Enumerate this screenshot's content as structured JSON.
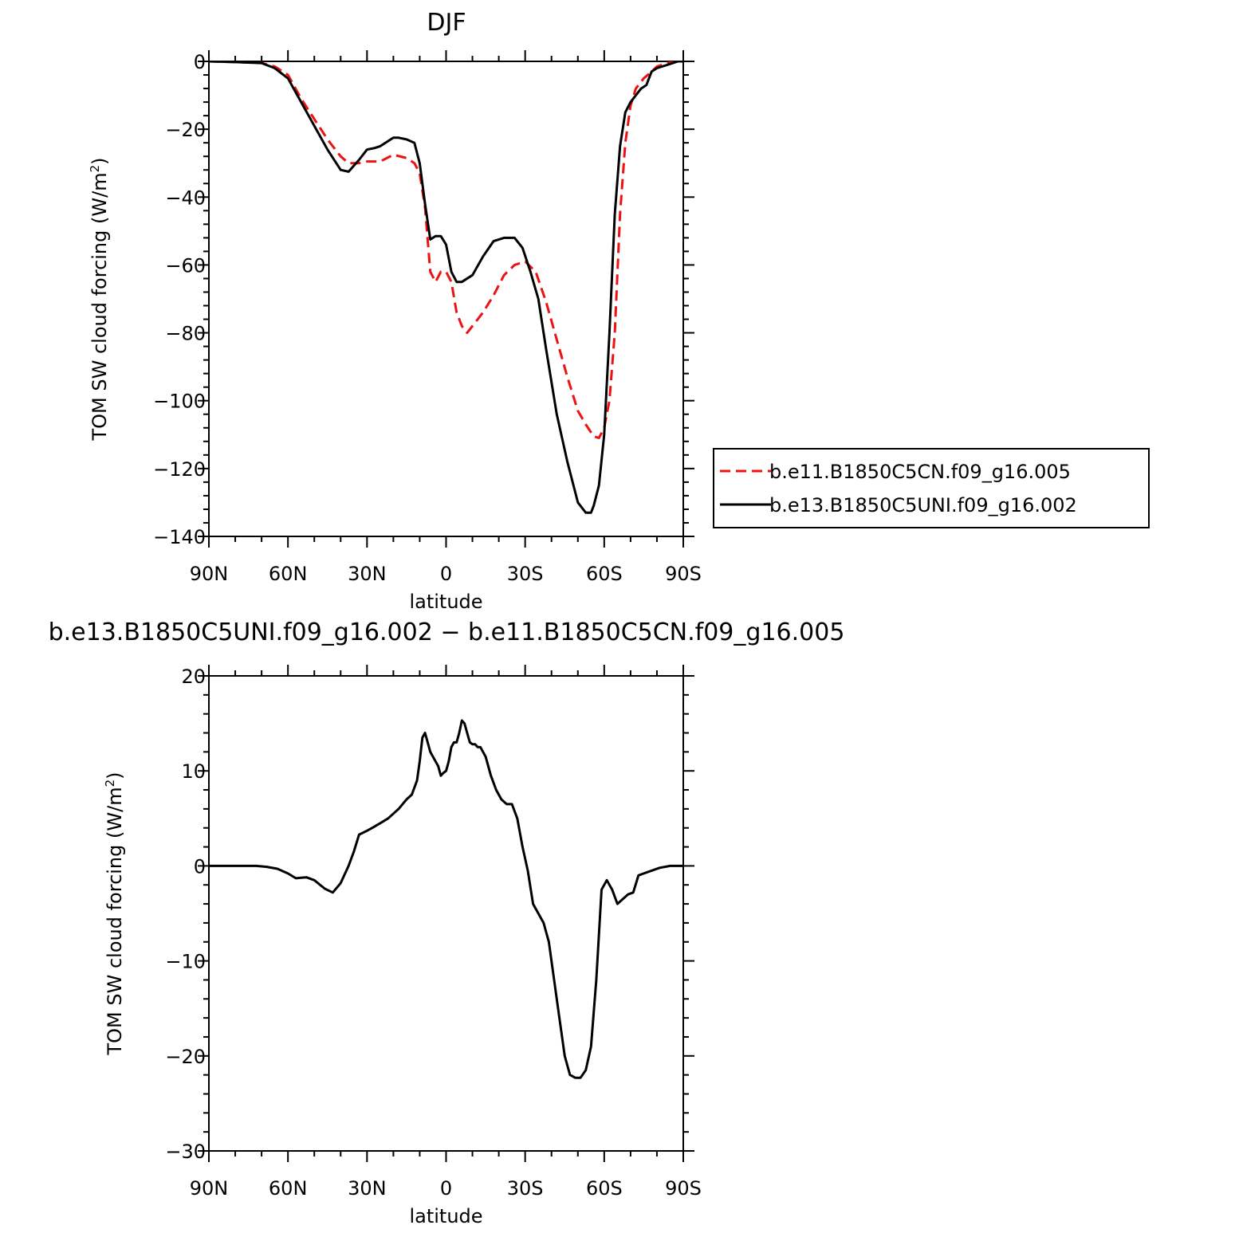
{
  "chart_data": [
    {
      "type": "line",
      "title": "DJF",
      "xlabel": "latitude",
      "ylabel": "TOM SW cloud forcing (W/m²)",
      "ylabel_main": "TOM SW cloud forcing (W/m",
      "ylabel_sup": "2",
      "ylabel_close": ")",
      "xlim": [
        90,
        -90
      ],
      "ylim": [
        -140,
        0
      ],
      "x_ticks": [
        90,
        60,
        30,
        0,
        -30,
        -60,
        -90
      ],
      "x_tick_labels": [
        "90N",
        "60N",
        "30N",
        "0",
        "30S",
        "60S",
        "90S"
      ],
      "y_ticks": [
        0,
        -20,
        -40,
        -60,
        -80,
        -100,
        -120,
        -140
      ],
      "y_tick_labels": [
        "0",
        "−20",
        "−40",
        "−60",
        "−80",
        "−100",
        "−120",
        "−140"
      ],
      "legend_position": "right",
      "series": [
        {
          "name": "b.e11.B1850C5CN.f09_g16.005",
          "color": "#ee1111",
          "dash": "dashed",
          "x": [
            90,
            80,
            70,
            65,
            60,
            55,
            50,
            45,
            40,
            37,
            33,
            30,
            25,
            20,
            15,
            12,
            10,
            8,
            6,
            4,
            2,
            0,
            -2,
            -4,
            -6,
            -8,
            -10,
            -14,
            -18,
            -22,
            -26,
            -30,
            -34,
            -38,
            -42,
            -46,
            -50,
            -53,
            -56,
            -58,
            -60,
            -62,
            -64,
            -66,
            -68,
            -70,
            -72,
            -75,
            -78,
            -80,
            -84,
            -88,
            -90
          ],
          "y": [
            0,
            -0.2,
            -0.5,
            -1.5,
            -4,
            -11,
            -17,
            -23,
            -28,
            -30,
            -30,
            -29.5,
            -29.5,
            -27.5,
            -28.5,
            -30,
            -33,
            -43,
            -62,
            -65,
            -62,
            -62,
            -65,
            -74,
            -78,
            -80,
            -78,
            -74,
            -69,
            -63,
            -60,
            -59,
            -62,
            -71,
            -82,
            -93,
            -103,
            -107,
            -110.5,
            -111,
            -108,
            -100,
            -80,
            -45,
            -24,
            -13,
            -8,
            -5,
            -3,
            -1.5,
            -0.5,
            0,
            0
          ]
        },
        {
          "name": "b.e13.B1850C5UNI.f09_g16.002",
          "color": "#000000",
          "dash": "solid",
          "x": [
            90,
            80,
            70,
            65,
            60,
            55,
            50,
            45,
            40,
            37,
            33,
            30,
            27,
            25,
            20,
            18,
            15,
            12,
            10,
            8,
            6,
            4,
            2,
            0,
            -2,
            -4,
            -6,
            -10,
            -14,
            -18,
            -22,
            -26,
            -29,
            -32,
            -35,
            -38,
            -42,
            -46,
            -50,
            -53,
            -55,
            -56,
            -58,
            -60,
            -62,
            -64,
            -66,
            -68,
            -70,
            -74,
            -76,
            -78,
            -80,
            -84,
            -88,
            -90
          ],
          "y": [
            0,
            -0.2,
            -0.5,
            -2,
            -5,
            -12,
            -19,
            -26,
            -32,
            -32.5,
            -29,
            -26,
            -25.5,
            -25,
            -22.5,
            -22.5,
            -23,
            -24,
            -30,
            -42,
            -52.5,
            -51.5,
            -51.5,
            -54,
            -62,
            -65,
            -65,
            -63,
            -57.5,
            -53,
            -52,
            -52,
            -55,
            -62,
            -70,
            -85,
            -104,
            -118,
            -130,
            -133,
            -133,
            -131,
            -125,
            -110,
            -80,
            -45,
            -25,
            -15,
            -12,
            -8,
            -7,
            -3,
            -2,
            -1,
            0,
            0
          ]
        }
      ]
    },
    {
      "type": "line",
      "title": "b.e13.B1850C5UNI.f09_g16.002 − b.e11.B1850C5CN.f09_g16.005",
      "xlabel": "latitude",
      "ylabel": "TOM SW cloud forcing (W/m²)",
      "ylabel_main": "TOM SW cloud forcing (W/m",
      "ylabel_sup": "2",
      "ylabel_close": ")",
      "xlim": [
        90,
        -90
      ],
      "ylim": [
        -30,
        20
      ],
      "x_ticks": [
        90,
        60,
        30,
        0,
        -30,
        -60,
        -90
      ],
      "x_tick_labels": [
        "90N",
        "60N",
        "30N",
        "0",
        "30S",
        "60S",
        "90S"
      ],
      "y_ticks": [
        20,
        10,
        0,
        -10,
        -20,
        -30
      ],
      "y_tick_labels": [
        "20",
        "10",
        "0",
        "−10",
        "−20",
        "−30"
      ],
      "series": [
        {
          "color": "#000000",
          "dash": "solid",
          "x": [
            90,
            80,
            72,
            68,
            64,
            60,
            57,
            53,
            50,
            46,
            43,
            40,
            37,
            35,
            33,
            30,
            28,
            25,
            22,
            20,
            18,
            15,
            13,
            11,
            10,
            9,
            8,
            7,
            6,
            5,
            4,
            3,
            2,
            1,
            0,
            -1,
            -2,
            -3,
            -4,
            -5,
            -6,
            -7,
            -8,
            -9,
            -10,
            -11,
            -12,
            -13,
            -15,
            -17,
            -19,
            -21,
            -23,
            -25,
            -27,
            -29,
            -31,
            -33,
            -35,
            -37,
            -39,
            -41,
            -43,
            -45,
            -47,
            -49,
            -51,
            -53,
            -55,
            -57,
            -59,
            -61,
            -63,
            -65,
            -67,
            -69,
            -71,
            -73,
            -75,
            -77,
            -79,
            -81,
            -85,
            -88,
            -90
          ],
          "y": [
            0,
            0,
            0,
            -0.1,
            -0.3,
            -0.8,
            -1.3,
            -1.2,
            -1.5,
            -2.4,
            -2.8,
            -1.8,
            0,
            1.5,
            3.3,
            3.7,
            4,
            4.5,
            5,
            5.5,
            6,
            7,
            7.5,
            9,
            11,
            13.5,
            14,
            13,
            12,
            11.5,
            11,
            10.5,
            9.5,
            9.8,
            10,
            11,
            12.5,
            13,
            13,
            14,
            15.3,
            15,
            14,
            13,
            12.8,
            12.8,
            12.5,
            12.5,
            11.5,
            9.5,
            8,
            7,
            6.5,
            6.5,
            5,
            2,
            -0.5,
            -4,
            -5,
            -6,
            -8,
            -12,
            -16,
            -20,
            -22,
            -22.3,
            -22.3,
            -21.5,
            -19,
            -12,
            -2.5,
            -1.5,
            -2.5,
            -4,
            -3.5,
            -3,
            -2.8,
            -1,
            -0.8,
            -0.6,
            -0.4,
            -0.2,
            0,
            0,
            0
          ]
        }
      ]
    }
  ]
}
